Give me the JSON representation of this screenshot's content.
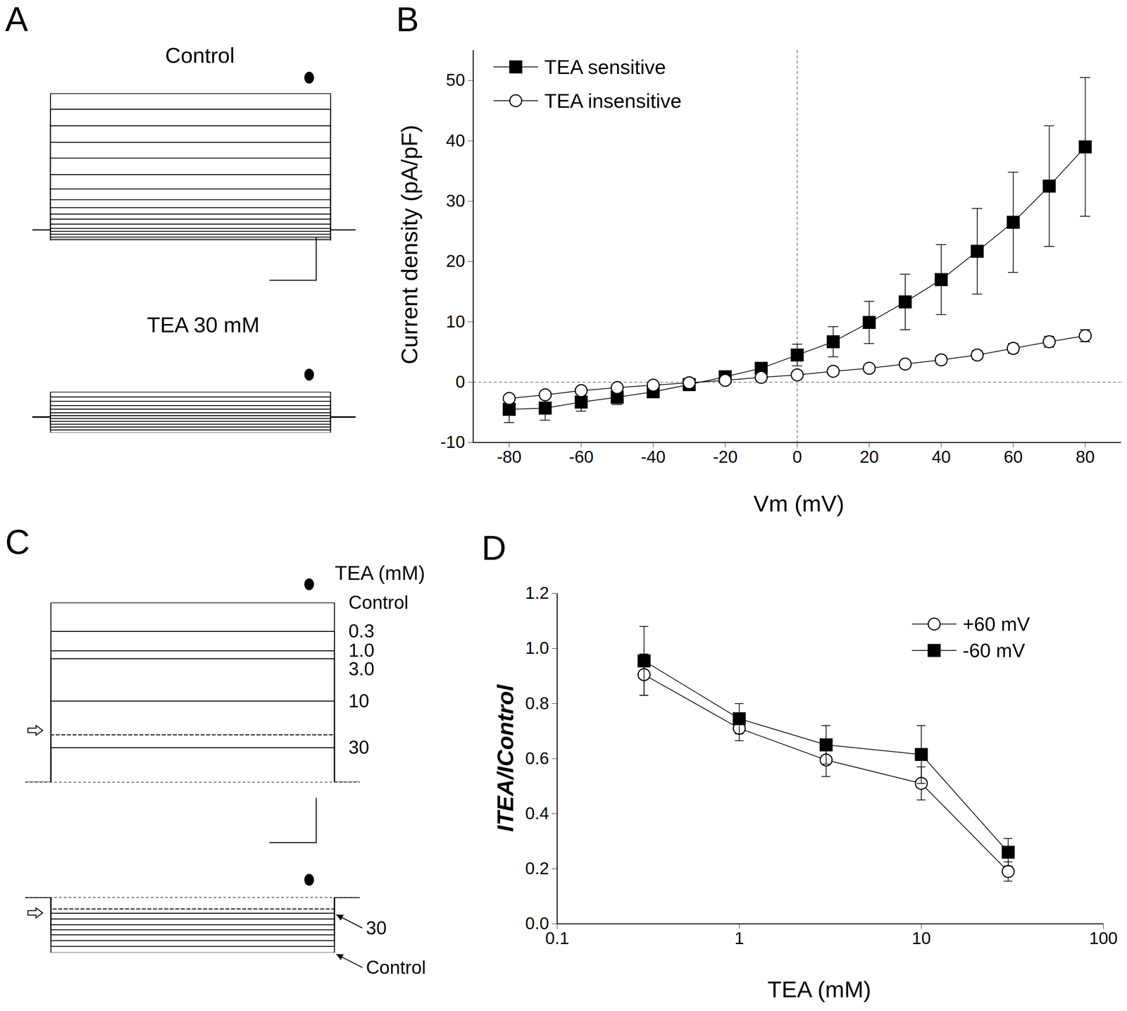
{
  "chart_data": [
    {
      "panel": "A",
      "title": "Control",
      "type": "line",
      "color": "#000000",
      "tick_labels": false,
      "x": [
        0,
        2.5,
        2.5,
        41.5,
        41.5,
        45
      ],
      "xlim": [
        0,
        45
      ],
      "ylim": [
        -15,
        190
      ],
      "series": [
        {
          "values": [
            0,
            0,
            190,
            190,
            0,
            0
          ]
        },
        {
          "values": [
            0,
            0,
            168,
            168,
            0,
            0
          ]
        },
        {
          "values": [
            0,
            0,
            145,
            145,
            0,
            0
          ]
        },
        {
          "values": [
            0,
            0,
            122,
            122,
            0,
            0
          ]
        },
        {
          "values": [
            0,
            0,
            100,
            100,
            0,
            0
          ]
        },
        {
          "values": [
            0,
            0,
            77,
            77,
            0,
            0
          ]
        },
        {
          "values": [
            0,
            0,
            57,
            57,
            0,
            0
          ]
        },
        {
          "values": [
            0,
            0,
            42,
            42,
            0,
            0
          ]
        },
        {
          "values": [
            0,
            0,
            31,
            31,
            0,
            0
          ]
        },
        {
          "values": [
            0,
            0,
            22,
            22,
            0,
            0
          ]
        },
        {
          "values": [
            0,
            0,
            15,
            15,
            0,
            0
          ]
        },
        {
          "values": [
            0,
            0,
            8,
            8,
            0,
            0
          ]
        },
        {
          "values": [
            0,
            0,
            2,
            2,
            0,
            0
          ]
        },
        {
          "values": [
            0,
            0,
            -2,
            -2,
            0,
            0
          ]
        },
        {
          "values": [
            0,
            0,
            -6,
            -6,
            0,
            0
          ]
        },
        {
          "values": [
            0,
            0,
            -10,
            -10,
            0,
            0
          ]
        },
        {
          "values": [
            0,
            0,
            -13,
            -13,
            0,
            0
          ]
        },
        {
          "values": [
            0,
            0,
            -15,
            -15,
            0,
            0
          ]
        }
      ]
    },
    {
      "title": "TEA 30 mM",
      "type": "line",
      "color": "#000000",
      "tick_labels": false,
      "x": [
        0,
        2.5,
        2.5,
        41.5,
        41.5,
        45
      ],
      "xlim": [
        0,
        45
      ],
      "ylim": [
        -22,
        35
      ],
      "series": [
        {
          "values": [
            0,
            0,
            35,
            35,
            0,
            0
          ]
        },
        {
          "values": [
            0,
            0,
            28,
            28,
            0,
            0
          ]
        },
        {
          "values": [
            0,
            0,
            22,
            22,
            0,
            0
          ]
        },
        {
          "values": [
            0,
            0,
            16,
            16,
            0,
            0
          ]
        },
        {
          "values": [
            0,
            0,
            11,
            11,
            0,
            0
          ]
        },
        {
          "values": [
            0,
            0,
            6,
            6,
            0,
            0
          ]
        },
        {
          "values": [
            0,
            0,
            2,
            2,
            0,
            0
          ]
        },
        {
          "values": [
            0,
            0,
            -2,
            -2,
            0,
            0
          ]
        },
        {
          "values": [
            0,
            0,
            -6,
            -6,
            0,
            0
          ]
        },
        {
          "values": [
            0,
            0,
            -10,
            -10,
            0,
            0
          ]
        },
        {
          "values": [
            0,
            0,
            -14,
            -14,
            0,
            0
          ]
        },
        {
          "values": [
            0,
            0,
            -18,
            -18,
            0,
            0
          ]
        },
        {
          "values": [
            0,
            0,
            -22,
            -22,
            0,
            0
          ]
        }
      ]
    },
    {
      "panel": "B",
      "type": "line",
      "color": "#000000",
      "xlabel": "Vm (mV)",
      "ylabel": "Current density (pA/pF)",
      "x": [
        -80,
        -70,
        -60,
        -50,
        -40,
        -30,
        -20,
        -10,
        0,
        10,
        20,
        30,
        40,
        50,
        60,
        70,
        80
      ],
      "xlim": [
        -90,
        90
      ],
      "xticks": [
        -80,
        -60,
        -40,
        -20,
        0,
        20,
        40,
        60,
        80
      ],
      "ylim": [
        -10,
        55
      ],
      "yticks": [
        -10,
        0,
        10,
        20,
        30,
        40,
        50
      ],
      "reference_lines": {
        "x": [
          0
        ],
        "y": [
          0
        ]
      },
      "legend": "top-left",
      "grid": false,
      "series": [
        {
          "name": "TEA sensitive",
          "color": "#000000",
          "marker": "filled square",
          "values": [
            -4.5,
            -4.3,
            -3.3,
            -2.5,
            -1.6,
            -0.4,
            0.9,
            2.3,
            4.5,
            6.7,
            9.9,
            13.3,
            17.0,
            21.7,
            26.5,
            32.5,
            39.0
          ],
          "errors": [
            2.2,
            2.0,
            1.5,
            1.2,
            0.8,
            0.5,
            0.5,
            0.8,
            1.8,
            2.5,
            3.5,
            4.6,
            5.8,
            7.1,
            8.3,
            10.0,
            11.5
          ]
        },
        {
          "name": "TEA insensitive",
          "color": "#000000",
          "marker": "open circle",
          "values": [
            -2.7,
            -2.1,
            -1.4,
            -0.9,
            -0.5,
            -0.1,
            0.3,
            0.8,
            1.2,
            1.8,
            2.3,
            3.0,
            3.7,
            4.5,
            5.6,
            6.7,
            7.7
          ],
          "errors": [
            0.4,
            0.4,
            0.4,
            0.3,
            0.3,
            0.3,
            0.3,
            0.4,
            0.5,
            0.5,
            0.6,
            0.6,
            0.7,
            0.7,
            0.8,
            0.9,
            1.0
          ]
        }
      ]
    },
    {
      "panel": "C",
      "title": "TEA (mM)",
      "type": "line",
      "color": "#000000",
      "tick_labels": false,
      "x": [
        0,
        3.5,
        3.5,
        42.5,
        42.5,
        46
      ],
      "xlim": [
        0,
        46
      ],
      "ylim": [
        0,
        250
      ],
      "reference_lines": {
        "y": [
          0
        ]
      },
      "series": [
        {
          "name": "Control",
          "values": [
            0,
            0,
            250,
            250,
            0,
            0
          ]
        },
        {
          "name": "0.3",
          "values": [
            0,
            0,
            210,
            210,
            0,
            0
          ]
        },
        {
          "name": "1.0",
          "values": [
            0,
            0,
            183,
            183,
            0,
            0
          ]
        },
        {
          "name": "3.0",
          "values": [
            0,
            0,
            172,
            172,
            0,
            0
          ]
        },
        {
          "name": "10",
          "values": [
            0,
            0,
            113,
            113,
            0,
            0
          ]
        },
        {
          "line_style": "dashed",
          "values": [
            0,
            0,
            66,
            66,
            0,
            0
          ]
        },
        {
          "name": "30",
          "values": [
            0,
            0,
            48,
            48,
            0,
            0
          ]
        }
      ]
    },
    {
      "type": "line",
      "color": "#000000",
      "tick_labels": false,
      "x": [
        0,
        3.5,
        3.5,
        42.5,
        42.5,
        46
      ],
      "xlim": [
        0,
        46
      ],
      "ylim": [
        -77,
        0
      ],
      "reference_lines": {
        "y": [
          0
        ]
      },
      "series": [
        {
          "line_style": "dashed",
          "values": [
            0,
            0,
            -16,
            -16,
            0,
            0
          ]
        },
        {
          "name": "30",
          "values": [
            0,
            0,
            -22,
            -22,
            0,
            0
          ]
        },
        {
          "values": [
            0,
            0,
            -30,
            -30,
            0,
            0
          ]
        },
        {
          "values": [
            0,
            0,
            -38,
            -38,
            0,
            0
          ]
        },
        {
          "values": [
            0,
            0,
            -45,
            -45,
            0,
            0
          ]
        },
        {
          "values": [
            0,
            0,
            -52,
            -52,
            0,
            0
          ]
        },
        {
          "values": [
            0,
            0,
            -60,
            -60,
            0,
            0
          ]
        },
        {
          "values": [
            0,
            0,
            -68,
            -68,
            0,
            0
          ]
        },
        {
          "name": "Control",
          "values": [
            0,
            0,
            -77,
            -77,
            0,
            0
          ]
        }
      ]
    },
    {
      "panel": "D",
      "type": "line",
      "color": "#000000",
      "log": "x",
      "xlabel": "TEA (mM)",
      "ylabel": "ITEA/IControl",
      "x": [
        0.3,
        1,
        3,
        10,
        30
      ],
      "xlim": [
        0.1,
        100
      ],
      "xticks": [
        0.1,
        1,
        10,
        100
      ],
      "ylim": [
        0,
        1.2
      ],
      "yticks": [
        {
          "value": 0,
          "label": "0.0"
        },
        {
          "value": 0.2,
          "label": "0.2"
        },
        {
          "value": 0.4,
          "label": "0.4"
        },
        {
          "value": 0.6,
          "label": "0.6"
        },
        {
          "value": 0.8,
          "label": "0.8"
        },
        {
          "value": 1,
          "label": "1.0"
        },
        {
          "value": 1.2,
          "label": "1.2"
        }
      ],
      "legend": "top-right",
      "grid": false,
      "series": [
        {
          "name": "+60 mV",
          "color": "#000000",
          "marker": "open circle",
          "values": [
            0.905,
            0.71,
            0.595,
            0.51,
            0.19
          ],
          "errors": [
            0.075,
            0.045,
            0.06,
            0.06,
            0.035
          ]
        },
        {
          "name": "-60 mV",
          "color": "#000000",
          "marker": "filled square",
          "values": [
            0.955,
            0.745,
            0.65,
            0.615,
            0.26
          ],
          "errors": [
            0.125,
            0.055,
            0.07,
            0.105,
            0.05
          ]
        }
      ]
    }
  ]
}
